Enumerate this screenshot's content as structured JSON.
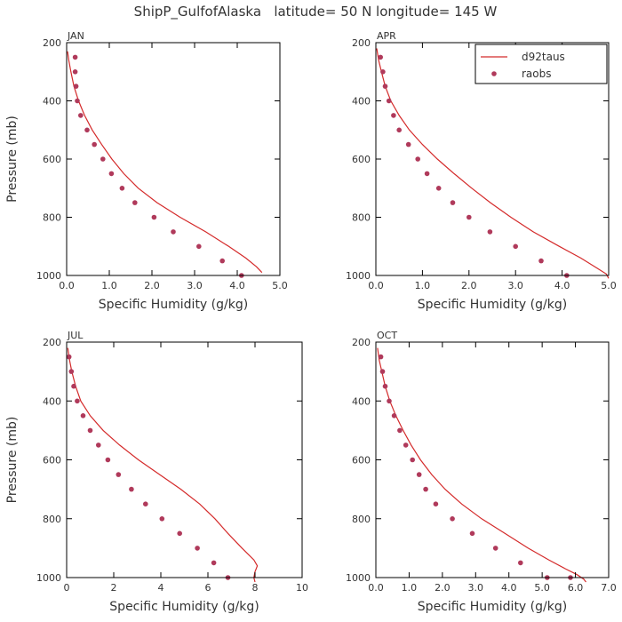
{
  "figure_title": "ShipP_GulfofAlaska   latitude= 50 N longitude= 145 W",
  "legend": {
    "model_label": "d92taus",
    "obs_label": "raobs"
  },
  "colors": {
    "model_line": "#d42a2a",
    "obs_marker": "#b03a5b",
    "axes": "#000000",
    "text": "#333333"
  },
  "chart_data": [
    {
      "type": "line",
      "panel": "JAN",
      "xlabel": "Specific Humidity (g/kg)",
      "ylabel": "Pressure (mb)",
      "xlim": [
        0,
        5
      ],
      "ylim": [
        1000,
        200
      ],
      "x_ticks": [
        0,
        1,
        2,
        3,
        4,
        5
      ],
      "x_tick_labels": [
        "0.0",
        "1.0",
        "2.0",
        "3.0",
        "4.0",
        "5.0"
      ],
      "y_ticks": [
        200,
        400,
        600,
        800,
        1000
      ],
      "y_tick_labels": [
        "200",
        "400",
        "600",
        "800",
        "1000"
      ],
      "series": [
        {
          "name": "d92taus",
          "style": "line",
          "x": [
            0.02,
            0.05,
            0.1,
            0.17,
            0.28,
            0.42,
            0.6,
            0.82,
            1.06,
            1.34,
            1.68,
            2.12,
            2.66,
            3.26,
            3.8,
            4.2,
            4.45,
            4.58
          ],
          "y": [
            230,
            260,
            300,
            350,
            400,
            450,
            500,
            550,
            600,
            650,
            700,
            750,
            800,
            850,
            900,
            940,
            970,
            990
          ]
        },
        {
          "name": "raobs",
          "style": "markers",
          "x": [
            0.2,
            0.2,
            0.22,
            0.25,
            0.33,
            0.48,
            0.65,
            0.85,
            1.05,
            1.3,
            1.6,
            2.05,
            2.5,
            3.1,
            3.65,
            4.1
          ],
          "y": [
            250,
            300,
            350,
            400,
            450,
            500,
            550,
            600,
            650,
            700,
            750,
            800,
            850,
            900,
            950,
            1000
          ]
        }
      ]
    },
    {
      "type": "line",
      "panel": "APR",
      "xlabel": "Specific Humidity (g/kg)",
      "ylabel": "",
      "xlim": [
        0,
        5
      ],
      "ylim": [
        1000,
        200
      ],
      "x_ticks": [
        0,
        1,
        2,
        3,
        4,
        5
      ],
      "x_tick_labels": [
        "0.0",
        "1.0",
        "2.0",
        "3.0",
        "4.0",
        "5.0"
      ],
      "y_ticks": [
        200,
        400,
        600,
        800,
        1000
      ],
      "y_tick_labels": [
        "200",
        "400",
        "600",
        "800",
        "1000"
      ],
      "legend_position": "top-right",
      "series": [
        {
          "name": "d92taus",
          "style": "line",
          "x": [
            0.02,
            0.06,
            0.12,
            0.2,
            0.32,
            0.5,
            0.72,
            1.0,
            1.32,
            1.68,
            2.06,
            2.46,
            2.9,
            3.38,
            3.94,
            4.4,
            4.75,
            4.95,
            5.0
          ],
          "y": [
            220,
            260,
            300,
            350,
            400,
            450,
            500,
            550,
            600,
            650,
            700,
            750,
            800,
            850,
            900,
            940,
            975,
            995,
            1010
          ]
        },
        {
          "name": "raobs",
          "style": "markers",
          "x": [
            0.1,
            0.15,
            0.2,
            0.28,
            0.38,
            0.5,
            0.7,
            0.9,
            1.1,
            1.35,
            1.65,
            2.0,
            2.45,
            3.0,
            3.55,
            4.1
          ],
          "y": [
            250,
            300,
            350,
            400,
            450,
            500,
            550,
            600,
            650,
            700,
            750,
            800,
            850,
            900,
            950,
            1000
          ]
        }
      ]
    },
    {
      "type": "line",
      "panel": "JUL",
      "xlabel": "Specific Humidity (g/kg)",
      "ylabel": "Pressure (mb)",
      "xlim": [
        0,
        10
      ],
      "ylim": [
        1000,
        200
      ],
      "x_ticks": [
        0,
        2,
        4,
        6,
        8,
        10
      ],
      "x_tick_labels": [
        "0",
        "2",
        "4",
        "6",
        "8",
        "10"
      ],
      "y_ticks": [
        200,
        400,
        600,
        800,
        1000
      ],
      "y_tick_labels": [
        "200",
        "400",
        "600",
        "800",
        "1000"
      ],
      "series": [
        {
          "name": "d92taus",
          "style": "line",
          "x": [
            0.05,
            0.12,
            0.22,
            0.38,
            0.6,
            1.0,
            1.55,
            2.25,
            3.05,
            3.95,
            4.85,
            5.65,
            6.3,
            6.85,
            7.45,
            7.95,
            8.1,
            8.0,
            7.95,
            8.0
          ],
          "y": [
            220,
            260,
            300,
            350,
            400,
            450,
            500,
            550,
            600,
            650,
            700,
            750,
            800,
            850,
            900,
            940,
            960,
            980,
            1000,
            1015
          ]
        },
        {
          "name": "raobs",
          "style": "markers",
          "x": [
            0.1,
            0.2,
            0.3,
            0.45,
            0.7,
            1.0,
            1.35,
            1.75,
            2.2,
            2.75,
            3.35,
            4.05,
            4.8,
            5.55,
            6.25,
            6.85
          ],
          "y": [
            250,
            300,
            350,
            400,
            450,
            500,
            550,
            600,
            650,
            700,
            750,
            800,
            850,
            900,
            950,
            1000
          ]
        }
      ]
    },
    {
      "type": "line",
      "panel": "OCT",
      "xlabel": "Specific Humidity (g/kg)",
      "ylabel": "",
      "xlim": [
        0,
        7
      ],
      "ylim": [
        1000,
        200
      ],
      "x_ticks": [
        0,
        1,
        2,
        3,
        4,
        5,
        6,
        7
      ],
      "x_tick_labels": [
        "0.0",
        "1.0",
        "2.0",
        "3.0",
        "4.0",
        "5.0",
        "6.0",
        "7.0"
      ],
      "y_ticks": [
        200,
        400,
        600,
        800,
        1000
      ],
      "y_tick_labels": [
        "200",
        "400",
        "600",
        "800",
        "1000"
      ],
      "series": [
        {
          "name": "d92taus",
          "style": "line",
          "x": [
            0.05,
            0.1,
            0.18,
            0.28,
            0.42,
            0.6,
            0.82,
            1.06,
            1.34,
            1.68,
            2.08,
            2.58,
            3.18,
            3.88,
            4.58,
            5.2,
            5.7,
            6.05,
            6.25,
            6.32
          ],
          "y": [
            220,
            260,
            300,
            350,
            400,
            450,
            500,
            550,
            600,
            650,
            700,
            750,
            800,
            850,
            900,
            940,
            970,
            990,
            1005,
            1015
          ]
        },
        {
          "name": "raobs",
          "style": "markers",
          "x": [
            0.15,
            0.2,
            0.28,
            0.4,
            0.55,
            0.72,
            0.9,
            1.1,
            1.3,
            1.5,
            1.8,
            2.3,
            2.9,
            3.6,
            4.35,
            5.15,
            5.85
          ],
          "y": [
            250,
            300,
            350,
            400,
            450,
            500,
            550,
            600,
            650,
            700,
            750,
            800,
            850,
            900,
            950,
            1000,
            1000
          ]
        }
      ]
    }
  ]
}
